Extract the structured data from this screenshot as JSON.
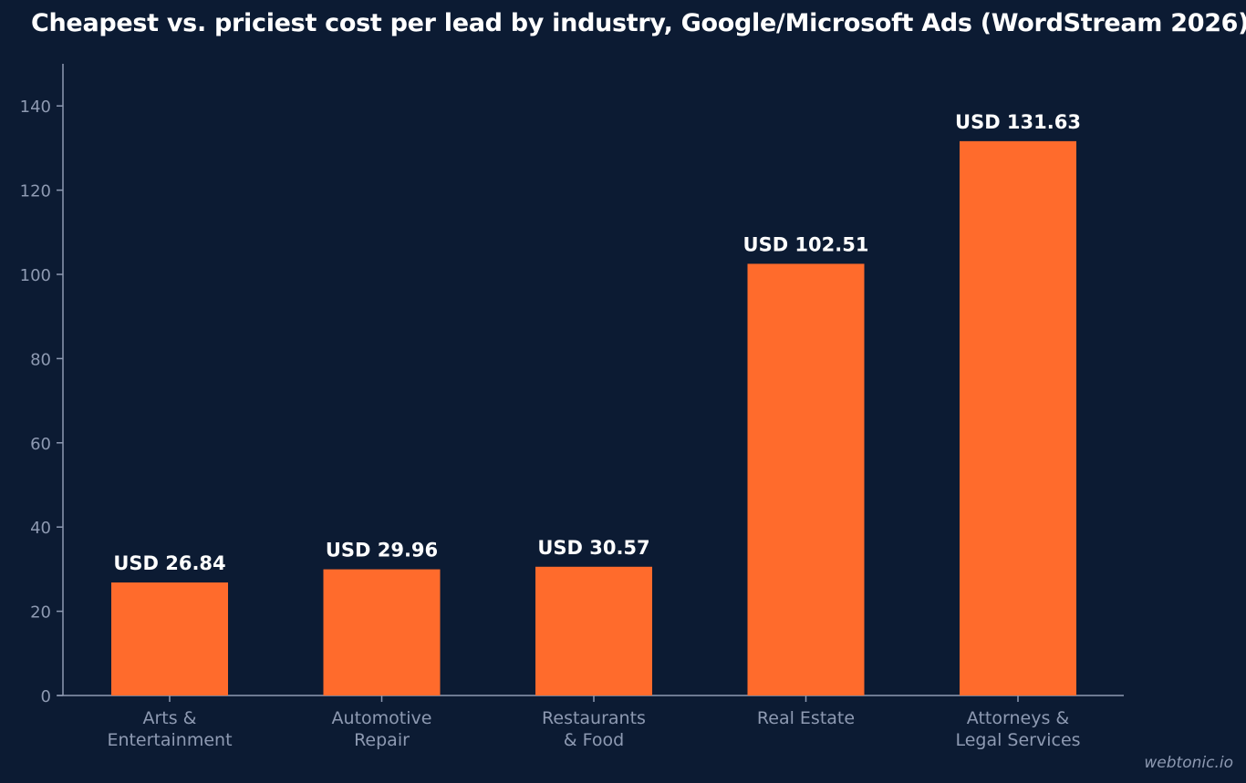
{
  "chart_data": {
    "type": "bar",
    "title": "Cheapest vs. priciest cost per lead by industry, Google/Microsoft Ads (WordStream 2026)",
    "xlabel": "",
    "ylabel": "",
    "categories": [
      [
        "Arts &",
        "Entertainment"
      ],
      [
        "Automotive",
        "Repair"
      ],
      [
        "Restaurants",
        "& Food"
      ],
      [
        "Real Estate"
      ],
      [
        "Attorneys &",
        "Legal Services"
      ]
    ],
    "values": [
      26.84,
      29.96,
      30.57,
      102.51,
      131.63
    ],
    "value_labels": [
      "USD 26.84",
      "USD 29.96",
      "USD 30.57",
      "USD 102.51",
      "USD 131.63"
    ],
    "ylim": [
      0,
      150
    ],
    "yticks": [
      0,
      20,
      40,
      60,
      80,
      100,
      120,
      140
    ],
    "grid": false,
    "legend": "none",
    "colors": {
      "background": "#0c1b33",
      "bar": "#ff6b2c",
      "axis": "#8e9ab2",
      "text": "#ffffff"
    }
  },
  "watermark": "webtonic.io"
}
